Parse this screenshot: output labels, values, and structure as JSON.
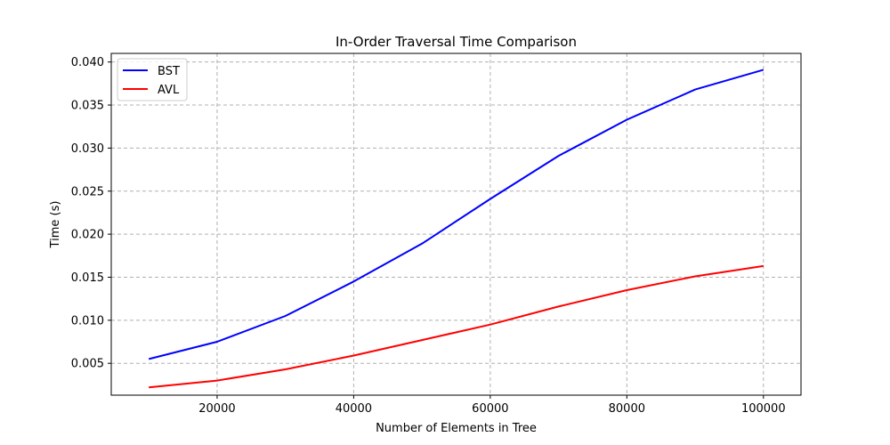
{
  "chart_data": {
    "type": "line",
    "title": "In-Order Traversal Time Comparison",
    "xlabel": "Number of Elements in Tree",
    "ylabel": "Time (s)",
    "x": [
      10000,
      20000,
      30000,
      40000,
      50000,
      60000,
      70000,
      80000,
      90000,
      100000
    ],
    "xlim": [
      4500,
      105500
    ],
    "ylim": [
      0.0013,
      0.041
    ],
    "xticks": [
      20000,
      40000,
      60000,
      80000,
      100000
    ],
    "xtick_labels": [
      "20000",
      "40000",
      "60000",
      "80000",
      "100000"
    ],
    "yticks": [
      0.005,
      0.01,
      0.015,
      0.02,
      0.025,
      0.03,
      0.035,
      0.04
    ],
    "ytick_labels": [
      "0.005",
      "0.010",
      "0.015",
      "0.020",
      "0.025",
      "0.030",
      "0.035",
      "0.040"
    ],
    "grid": true,
    "legend_position": "top-left",
    "series": [
      {
        "name": "BST",
        "color": "#0000ff",
        "values": [
          0.0055,
          0.0075,
          0.0105,
          0.0145,
          0.0189,
          0.0241,
          0.0291,
          0.0333,
          0.0368,
          0.0391
        ]
      },
      {
        "name": "AVL",
        "color": "#ff0000",
        "values": [
          0.0022,
          0.003,
          0.0043,
          0.0059,
          0.0077,
          0.0095,
          0.0116,
          0.0135,
          0.0151,
          0.0163
        ]
      }
    ]
  }
}
